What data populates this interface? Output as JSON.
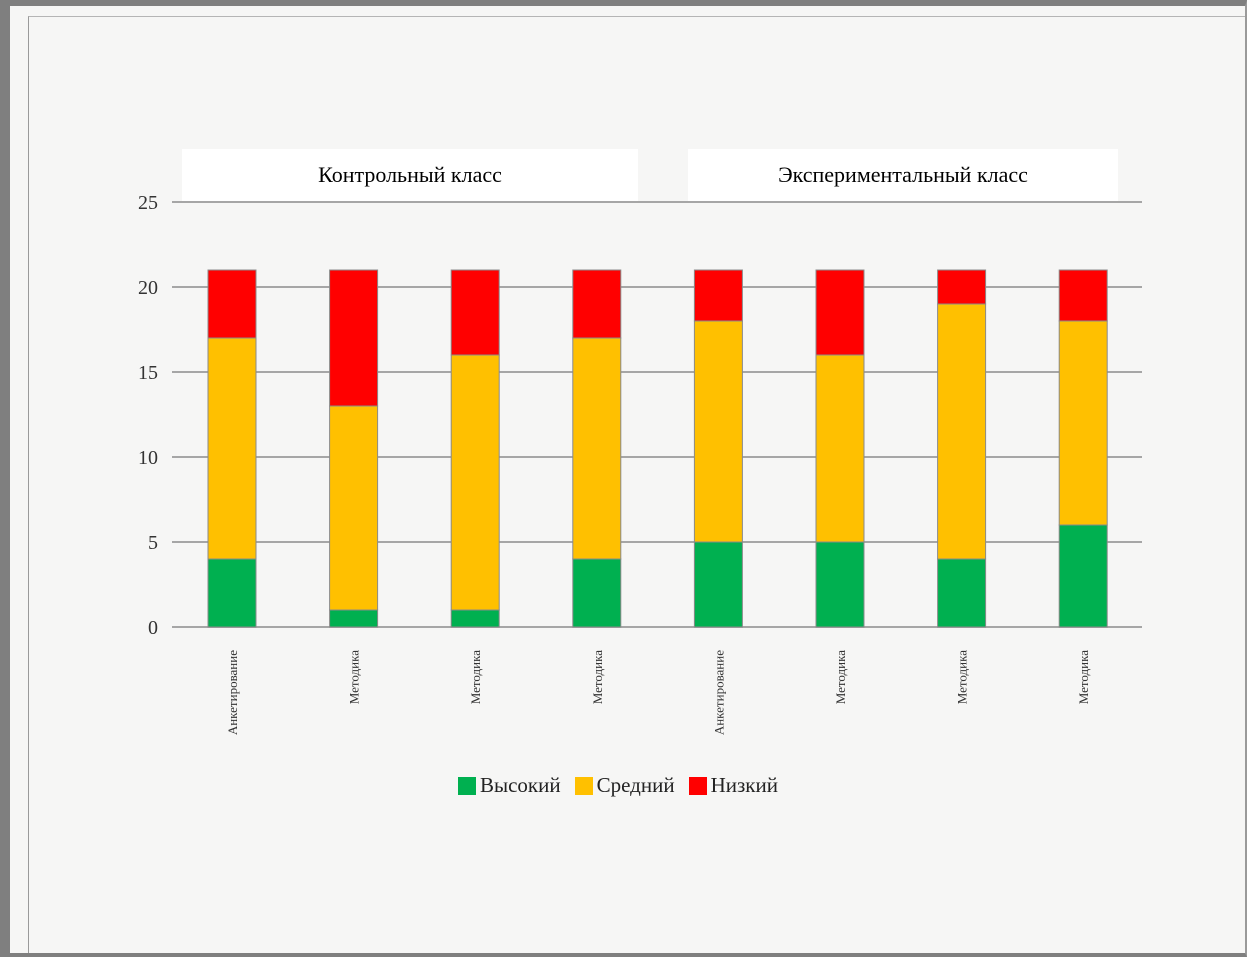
{
  "chart_data": {
    "type": "bar",
    "stacked": true,
    "group_labels": [
      "Контрольный класс",
      "Экспериментальный класс"
    ],
    "categories": [
      "Анкетирование",
      "Методика",
      "Методика",
      "Методика",
      "Анкетирование",
      "Методика",
      "Методика",
      "Методика"
    ],
    "series": [
      {
        "name": "Высокий",
        "color": "#00b050",
        "values": [
          4,
          1,
          1,
          4,
          5,
          5,
          4,
          6
        ]
      },
      {
        "name": "Средний",
        "color": "#ffc000",
        "values": [
          13,
          12,
          15,
          13,
          13,
          11,
          15,
          12
        ]
      },
      {
        "name": "Низкий",
        "color": "#ff0000",
        "values": [
          4,
          8,
          5,
          4,
          3,
          5,
          2,
          3
        ]
      }
    ],
    "yticks": [
      0,
      5,
      10,
      15,
      20,
      25
    ],
    "ylim": [
      0,
      25
    ],
    "grid": true,
    "legend_position": "bottom"
  }
}
